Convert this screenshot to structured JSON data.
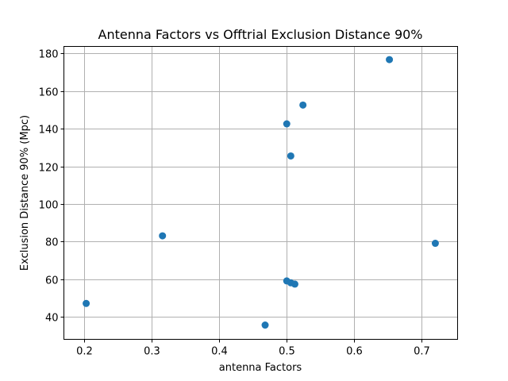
{
  "chart_data": {
    "type": "scatter",
    "title": "Antenna Factors vs Offtrial Exclusion Distance 90%",
    "xlabel": "antenna Factors",
    "ylabel": "Exclusion Distance 90% (Mpc)",
    "xlim": [
      0.17,
      0.753
    ],
    "ylim": [
      27.9,
      183.8
    ],
    "xticks": [
      0.2,
      0.3,
      0.4,
      0.5,
      0.6,
      0.7
    ],
    "xtick_labels": [
      "0.2",
      "0.3",
      "0.4",
      "0.5",
      "0.6",
      "0.7"
    ],
    "yticks": [
      40,
      60,
      80,
      100,
      120,
      140,
      160,
      180
    ],
    "ytick_labels": [
      "40",
      "60",
      "80",
      "100",
      "120",
      "140",
      "160",
      "180"
    ],
    "grid": true,
    "marker_color": "#1f77b4",
    "points": [
      {
        "x": 0.203,
        "y": 47.0
      },
      {
        "x": 0.316,
        "y": 83.0
      },
      {
        "x": 0.468,
        "y": 35.5
      },
      {
        "x": 0.5,
        "y": 59.0
      },
      {
        "x": 0.506,
        "y": 58.0
      },
      {
        "x": 0.512,
        "y": 57.3
      },
      {
        "x": 0.5,
        "y": 142.6
      },
      {
        "x": 0.506,
        "y": 125.5
      },
      {
        "x": 0.524,
        "y": 152.6
      },
      {
        "x": 0.652,
        "y": 176.8
      },
      {
        "x": 0.72,
        "y": 79.0
      }
    ]
  }
}
